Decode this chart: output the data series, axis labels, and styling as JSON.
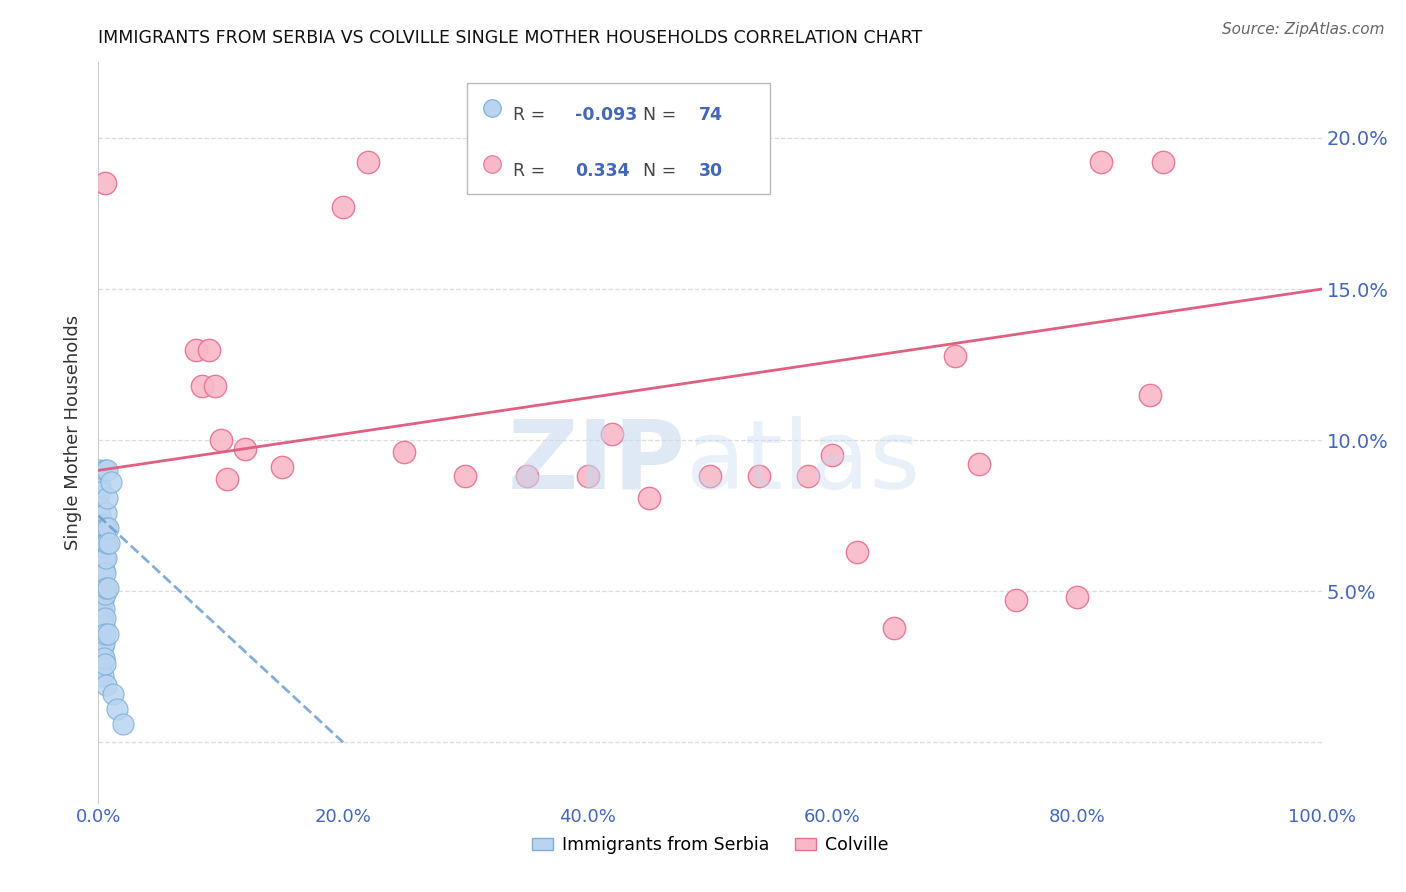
{
  "title": "IMMIGRANTS FROM SERBIA VS COLVILLE SINGLE MOTHER HOUSEHOLDS CORRELATION CHART",
  "source": "Source: ZipAtlas.com",
  "ylabel": "Single Mother Households",
  "serbia_color": "#b8d4f0",
  "serbia_edge": "#7aafd4",
  "colville_color": "#f9b8c8",
  "colville_edge": "#e87090",
  "serbia_line_color": "#6699cc",
  "colville_line_color": "#e06080",
  "axis_color": "#4466bb",
  "grid_color": "#dddddd",
  "xlim": [
    0.0,
    1.0
  ],
  "ylim": [
    -0.02,
    0.225
  ],
  "yticks": [
    0.0,
    0.05,
    0.1,
    0.15,
    0.2
  ],
  "ytick_labels": [
    "",
    "5.0%",
    "10.0%",
    "15.0%",
    "20.0%"
  ],
  "xticks": [
    0.0,
    0.2,
    0.4,
    0.6,
    0.8,
    1.0
  ],
  "xtick_labels": [
    "0.0%",
    "20.0%",
    "40.0%",
    "60.0%",
    "80.0%",
    "100.0%"
  ],
  "serbia_R": -0.093,
  "serbia_N": 74,
  "colville_R": 0.334,
  "colville_N": 30,
  "serbia_scatter": [
    [
      0.0008,
      0.09
    ],
    [
      0.0008,
      0.088
    ],
    [
      0.001,
      0.085
    ],
    [
      0.001,
      0.083
    ],
    [
      0.0012,
      0.078
    ],
    [
      0.0012,
      0.075
    ],
    [
      0.0012,
      0.072
    ],
    [
      0.0015,
      0.07
    ],
    [
      0.0015,
      0.067
    ],
    [
      0.0015,
      0.064
    ],
    [
      0.0015,
      0.062
    ],
    [
      0.0018,
      0.058
    ],
    [
      0.0018,
      0.055
    ],
    [
      0.0018,
      0.052
    ],
    [
      0.002,
      0.05
    ],
    [
      0.002,
      0.047
    ],
    [
      0.002,
      0.045
    ],
    [
      0.0022,
      0.042
    ],
    [
      0.0022,
      0.04
    ],
    [
      0.0022,
      0.038
    ],
    [
      0.0025,
      0.035
    ],
    [
      0.0025,
      0.033
    ],
    [
      0.0025,
      0.031
    ],
    [
      0.0028,
      0.029
    ],
    [
      0.0028,
      0.027
    ],
    [
      0.0028,
      0.025
    ],
    [
      0.003,
      0.058
    ],
    [
      0.003,
      0.053
    ],
    [
      0.003,
      0.048
    ],
    [
      0.0032,
      0.043
    ],
    [
      0.0032,
      0.038
    ],
    [
      0.0032,
      0.032
    ],
    [
      0.0035,
      0.062
    ],
    [
      0.0035,
      0.057
    ],
    [
      0.0035,
      0.052
    ],
    [
      0.0038,
      0.047
    ],
    [
      0.0038,
      0.042
    ],
    [
      0.0038,
      0.037
    ],
    [
      0.004,
      0.032
    ],
    [
      0.004,
      0.027
    ],
    [
      0.004,
      0.022
    ],
    [
      0.0042,
      0.072
    ],
    [
      0.0042,
      0.067
    ],
    [
      0.0045,
      0.057
    ],
    [
      0.0045,
      0.05
    ],
    [
      0.0045,
      0.044
    ],
    [
      0.0048,
      0.039
    ],
    [
      0.0048,
      0.033
    ],
    [
      0.0048,
      0.028
    ],
    [
      0.005,
      0.09
    ],
    [
      0.005,
      0.066
    ],
    [
      0.0052,
      0.061
    ],
    [
      0.0052,
      0.056
    ],
    [
      0.0052,
      0.049
    ],
    [
      0.0055,
      0.041
    ],
    [
      0.0055,
      0.036
    ],
    [
      0.0055,
      0.026
    ],
    [
      0.0058,
      0.019
    ],
    [
      0.006,
      0.076
    ],
    [
      0.006,
      0.071
    ],
    [
      0.006,
      0.066
    ],
    [
      0.0062,
      0.061
    ],
    [
      0.0062,
      0.051
    ],
    [
      0.007,
      0.09
    ],
    [
      0.007,
      0.081
    ],
    [
      0.0072,
      0.066
    ],
    [
      0.0075,
      0.051
    ],
    [
      0.0075,
      0.036
    ],
    [
      0.008,
      0.071
    ],
    [
      0.009,
      0.066
    ],
    [
      0.01,
      0.086
    ],
    [
      0.012,
      0.016
    ],
    [
      0.015,
      0.011
    ],
    [
      0.02,
      0.006
    ]
  ],
  "colville_scatter": [
    [
      0.005,
      0.185
    ],
    [
      0.08,
      0.13
    ],
    [
      0.085,
      0.118
    ],
    [
      0.09,
      0.13
    ],
    [
      0.095,
      0.118
    ],
    [
      0.1,
      0.1
    ],
    [
      0.105,
      0.087
    ],
    [
      0.12,
      0.097
    ],
    [
      0.15,
      0.091
    ],
    [
      0.2,
      0.177
    ],
    [
      0.22,
      0.192
    ],
    [
      0.25,
      0.096
    ],
    [
      0.3,
      0.088
    ],
    [
      0.35,
      0.088
    ],
    [
      0.4,
      0.088
    ],
    [
      0.42,
      0.102
    ],
    [
      0.45,
      0.081
    ],
    [
      0.5,
      0.088
    ],
    [
      0.54,
      0.088
    ],
    [
      0.58,
      0.088
    ],
    [
      0.6,
      0.095
    ],
    [
      0.62,
      0.063
    ],
    [
      0.65,
      0.038
    ],
    [
      0.7,
      0.128
    ],
    [
      0.72,
      0.092
    ],
    [
      0.75,
      0.047
    ],
    [
      0.8,
      0.048
    ],
    [
      0.82,
      0.192
    ],
    [
      0.86,
      0.115
    ],
    [
      0.87,
      0.192
    ]
  ]
}
